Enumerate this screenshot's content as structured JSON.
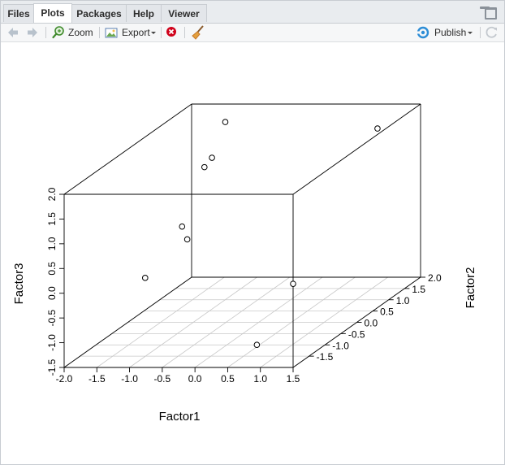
{
  "tabs": [
    {
      "label": "Files",
      "active": false
    },
    {
      "label": "Plots",
      "active": true
    },
    {
      "label": "Packages",
      "active": false
    },
    {
      "label": "Help",
      "active": false
    },
    {
      "label": "Viewer",
      "active": false
    }
  ],
  "toolbar": {
    "zoom_label": "Zoom",
    "export_label": "Export",
    "publish_label": "Publish"
  },
  "icons": {
    "back": "left-arrow-icon",
    "forward": "right-arrow-icon",
    "zoom": "zoom-magnifier-icon",
    "export": "export-image-icon",
    "remove": "remove-plot-icon",
    "clear": "broom-icon",
    "publish": "publish-icon",
    "refresh": "refresh-icon"
  },
  "colors": {
    "remove_red": "#d0021b",
    "publish_blue": "#2d8dd6",
    "arrow_gray": "#b8c2cc",
    "broom_brown": "#c8792b"
  },
  "chart_data": {
    "type": "scatter3d",
    "xlabel": "Factor1",
    "ylabel": "Factor2",
    "zlabel": "Factor3",
    "xlim": [
      -2.0,
      1.5
    ],
    "ylim": [
      -2.0,
      2.0
    ],
    "zlim": [
      -1.5,
      2.0
    ],
    "x_ticks": [
      "-2.0",
      "-1.5",
      "-1.0",
      "-0.5",
      "0.0",
      "0.5",
      "1.0",
      "1.5"
    ],
    "y_ticks": [
      "-1.5",
      "-1.0",
      "-0.5",
      "0.0",
      "0.5",
      "1.0",
      "1.5",
      "2.0"
    ],
    "z_ticks": [
      "-1.5",
      "-1.0",
      "-0.5",
      "0.0",
      "0.5",
      "1.0",
      "1.5",
      "2.0"
    ],
    "grid": true,
    "points": [
      {
        "x": -1.2,
        "y": 0.76,
        "z": 1.29
      },
      {
        "x": -1.22,
        "y": 0.1,
        "z": 0.39
      },
      {
        "x": -1.3,
        "y": 1.62,
        "z": 1.81
      },
      {
        "x": 1.5,
        "y": -2.0,
        "z": 0.19
      },
      {
        "x": 0.9,
        "y": 1.88,
        "z": 1.56
      },
      {
        "x": -1.64,
        "y": 1.9,
        "z": 0.96
      },
      {
        "x": -1.2,
        "y": -1.1,
        "z": -0.1
      },
      {
        "x": 0.8,
        "y": -1.7,
        "z": -1.18
      },
      {
        "x": -0.8,
        "y": -0.6,
        "z": 0.45
      }
    ]
  }
}
